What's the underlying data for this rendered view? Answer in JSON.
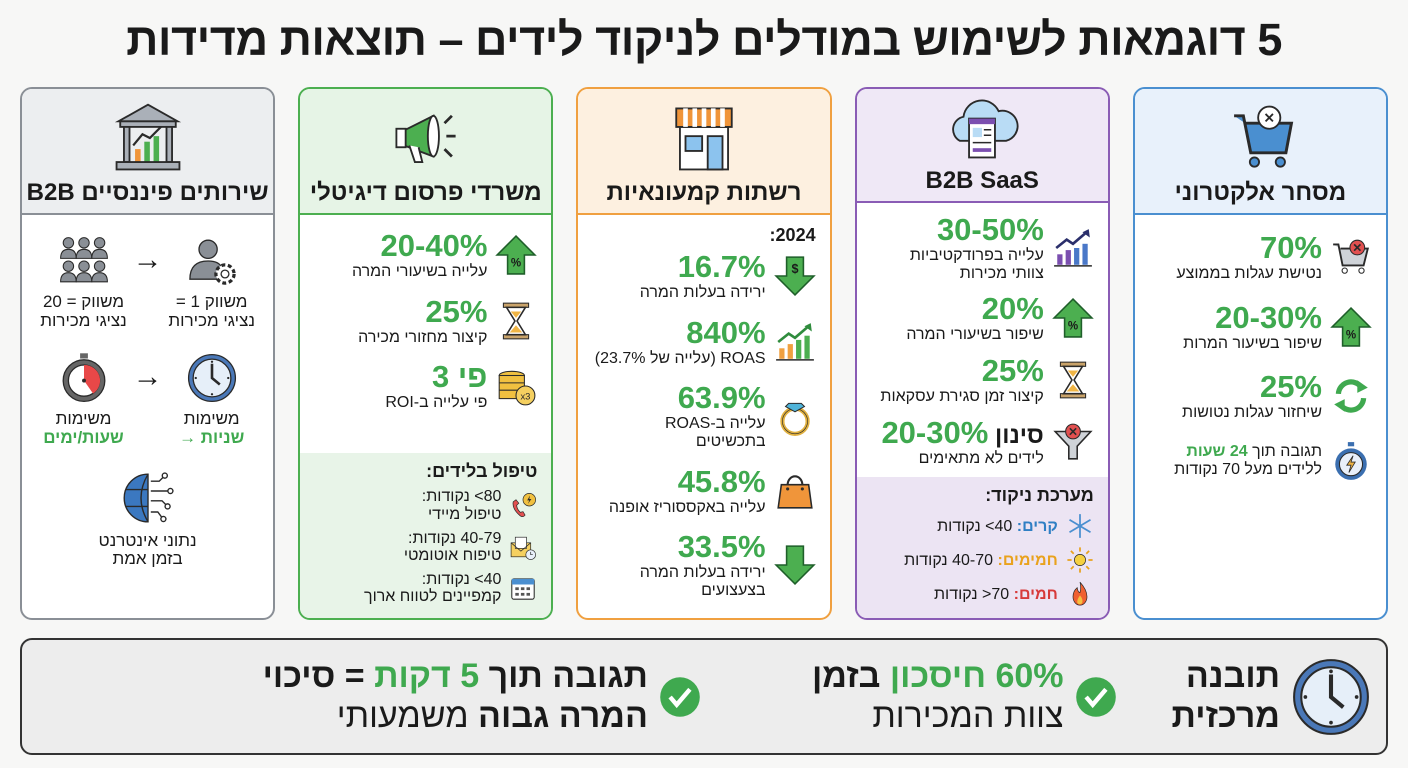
{
  "title": "5 דוגמאות לשימוש במודלים לניקוד לידים – תוצאות מדידות",
  "colors": {
    "green": "#3fa94f",
    "blue": "#4a8fd0",
    "purple": "#8a5cb5",
    "orange": "#f0a040",
    "gray": "#8a8f96"
  },
  "cards": [
    {
      "key": "ecommerce",
      "title": "מסחר אלקטרוני",
      "icon": "shopping-cart-x",
      "border": "#4a8fd0",
      "bg": "#e8f1fb",
      "footbg": "",
      "stats": [
        {
          "icon": "cart-x",
          "value": "70%",
          "label": [
            [
              "נטישת עגלות בממוצע"
            ]
          ]
        },
        {
          "icon": "arrow-up-percent",
          "value": "20-30%",
          "label": [
            [
              "שיפור בשיעור המרות"
            ]
          ]
        },
        {
          "icon": "cycle-arrows",
          "value": "25%",
          "label": [
            [
              "שיחזור עגלות נטושות"
            ]
          ]
        },
        {
          "icon": "stopwatch-bolt",
          "value": "",
          "label": [
            [
              "תגובה תוך ",
              {
                "t": "24 שעות",
                "c": "g"
              }
            ],
            [
              "ללידים מעל 70 נקודות"
            ]
          ]
        }
      ]
    },
    {
      "key": "saas",
      "title": "B2B SaaS",
      "icon": "cloud-browser",
      "border": "#8a5cb5",
      "bg": "#efe8f6",
      "footbg": "#ece4f3",
      "stats": [
        {
          "icon": "growth-chart-purple",
          "value": "30-50%",
          "label": [
            [
              "עלייה בפרודקטיביות"
            ],
            [
              "צוותי מכירות"
            ]
          ]
        },
        {
          "icon": "arrow-up-percent",
          "value": "20%",
          "label": [
            [
              "שיפור בשיעורי המרה"
            ]
          ]
        },
        {
          "icon": "hourglass",
          "value": "25%",
          "label": [
            [
              "קיצור זמן סגירת עסקאות"
            ]
          ]
        },
        {
          "icon": "funnel-x",
          "prefix": "סינון ",
          "value": "20-30%",
          "label": [
            [
              "לידים לא מתאימים"
            ]
          ]
        }
      ],
      "footer": {
        "title": "מערכת ניקוד:",
        "items": [
          {
            "icon": "snowflake",
            "label": "קרים:",
            "color": "#2f7fc4",
            "rest": " 40> נקודות"
          },
          {
            "icon": "sun",
            "label": "חמימים:",
            "color": "#e9a21d",
            "rest": " 40-70 נקודות"
          },
          {
            "icon": "fire",
            "label": "חמים:",
            "color": "#d73a3a",
            "rest": " 70< נקודות"
          }
        ]
      }
    },
    {
      "key": "retail",
      "title": "רשתות קמעונאיות",
      "icon": "storefront",
      "border": "#f0a040",
      "bg": "#fdf0e0",
      "footbg": "",
      "year": "2024:",
      "stats": [
        {
          "icon": "arrow-down-dollar",
          "value": "16.7%",
          "label": [
            [
              "ירידה בעלות המרה"
            ]
          ]
        },
        {
          "icon": "growth-chart-green",
          "value": "840%",
          "label": [
            [
              "ROAS (עלייה של 23.7%)"
            ]
          ]
        },
        {
          "icon": "diamond-ring",
          "value": "63.9%",
          "label": [
            [
              "עלייה ב-ROAS בתכשיטים"
            ]
          ]
        },
        {
          "icon": "shopping-bag",
          "value": "45.8%",
          "label": [
            [
              "עלייה באקססוריז אופנה"
            ]
          ]
        },
        {
          "icon": "arrow-down",
          "value": "33.5%",
          "label": [
            [
              "ירידה בעלות המרה"
            ],
            [
              "בצעצועים"
            ]
          ]
        }
      ]
    },
    {
      "key": "digital",
      "title": "משרדי פרסום דיגיטלי",
      "icon": "megaphone",
      "border": "#4caf50",
      "bg": "#e6f4e6",
      "footbg": "#e8f4e8",
      "stats": [
        {
          "icon": "arrow-up-percent",
          "value": "20-40%",
          "label": [
            [
              "עלייה בשיעורי המרה"
            ]
          ]
        },
        {
          "icon": "hourglass",
          "value": "25%",
          "label": [
            [
              "קיצור מחזורי מכירה"
            ]
          ]
        },
        {
          "icon": "coins-x3",
          "value": "פי 3",
          "label": [
            [
              "פי עלייה ב-ROI"
            ]
          ]
        }
      ],
      "footer": {
        "title": "טיפול בלידים:",
        "items": [
          {
            "icon": "phone-bolt",
            "label": "",
            "color": "",
            "rest": "80> נקודות:",
            "line2": "טיפול מיידי"
          },
          {
            "icon": "envelope-clock",
            "label": "",
            "color": "",
            "rest": "40-79 נקודות:",
            "line2": "טיפוח אוטומטי"
          },
          {
            "icon": "calendar",
            "label": "",
            "color": "",
            "rest": "40> נקודות:",
            "line2": "קמפיינים לטווח ארוך"
          }
        ]
      }
    },
    {
      "key": "finance",
      "title": "שירותים פיננסיים B2B",
      "icon": "bank-chart",
      "border": "#8a8f96",
      "bg": "#eceef0",
      "footbg": "",
      "flows": [
        {
          "from": {
            "icon": "person-gear",
            "l1": "משווק 1 =",
            "l2": "נציגי מכירות",
            "green": false
          },
          "arrow": "→",
          "to": {
            "icon": "people-group",
            "l1": "משווק = 20",
            "l2": "נציגי מכירות",
            "green": false
          }
        },
        {
          "from": {
            "icon": "clock",
            "l1": "משימות",
            "l2": "שניות →",
            "green": true
          },
          "arrow": "→",
          "to": {
            "icon": "stopwatch-red",
            "l1": "משימות",
            "l2": "שעות/ימים",
            "green": true
          }
        }
      ],
      "globe": {
        "icon": "globe-circuit",
        "l1": "נתוני אינטרנט",
        "l2": "בזמן אמת"
      }
    }
  ],
  "bottom": {
    "insight": {
      "icon": "clock",
      "l1": "תובנה",
      "l2": "מרכזית"
    },
    "point1": {
      "icon": "check-circle",
      "g": "60% חיסכון",
      "d": " בזמן",
      "l2": "צוות המכירות"
    },
    "point2": {
      "icon": "check-circle",
      "a": "תגובה תוך ",
      "g": "5 דקות",
      "b": " = סיכוי",
      "l2b": "המרה גבוה",
      "l2": " משמעותי"
    }
  }
}
